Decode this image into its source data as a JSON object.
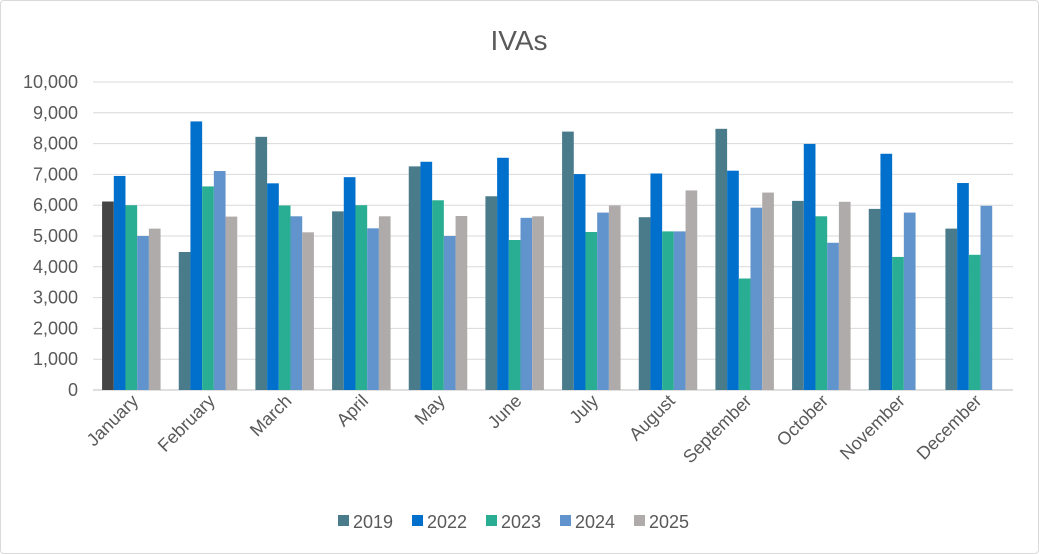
{
  "chart_data": {
    "type": "bar",
    "title": "IVAs",
    "xlabel": "",
    "ylabel": "",
    "ylim": [
      0,
      10000
    ],
    "yticks": [
      0,
      1000,
      2000,
      3000,
      4000,
      5000,
      6000,
      7000,
      8000,
      9000,
      10000
    ],
    "ytick_labels": [
      "0",
      "1,000",
      "2,000",
      "3,000",
      "4,000",
      "5,000",
      "6,000",
      "7,000",
      "8,000",
      "9,000",
      "10,000"
    ],
    "grid": true,
    "legend_position": "bottom",
    "categories": [
      "January",
      "February",
      "March",
      "April",
      "May",
      "June",
      "July",
      "August",
      "September",
      "October",
      "November",
      "December"
    ],
    "series": [
      {
        "name": "2019",
        "color": "#4a7b8b",
        "values": [
          6120,
          4480,
          8220,
          5800,
          7260,
          6290,
          8390,
          5610,
          8480,
          6140,
          5880,
          5240
        ],
        "point_colors": {
          "0": "#454545"
        }
      },
      {
        "name": "2022",
        "color": "#0070cc",
        "values": [
          6950,
          8720,
          6710,
          6910,
          7410,
          7540,
          7010,
          7030,
          7120,
          7990,
          7670,
          6720
        ]
      },
      {
        "name": "2023",
        "color": "#2aae93",
        "values": [
          6000,
          6610,
          5990,
          6000,
          6160,
          4870,
          5130,
          5150,
          3620,
          5640,
          4320,
          4390
        ]
      },
      {
        "name": "2024",
        "color": "#6193cc",
        "values": [
          5000,
          7110,
          5640,
          5250,
          5000,
          5590,
          5760,
          5150,
          5920,
          4780,
          5760,
          5980
        ]
      },
      {
        "name": "2025",
        "color": "#b0abab",
        "values": [
          5240,
          5630,
          5120,
          5640,
          5650,
          5640,
          5990,
          6480,
          6410,
          6110,
          null,
          null
        ]
      }
    ]
  }
}
